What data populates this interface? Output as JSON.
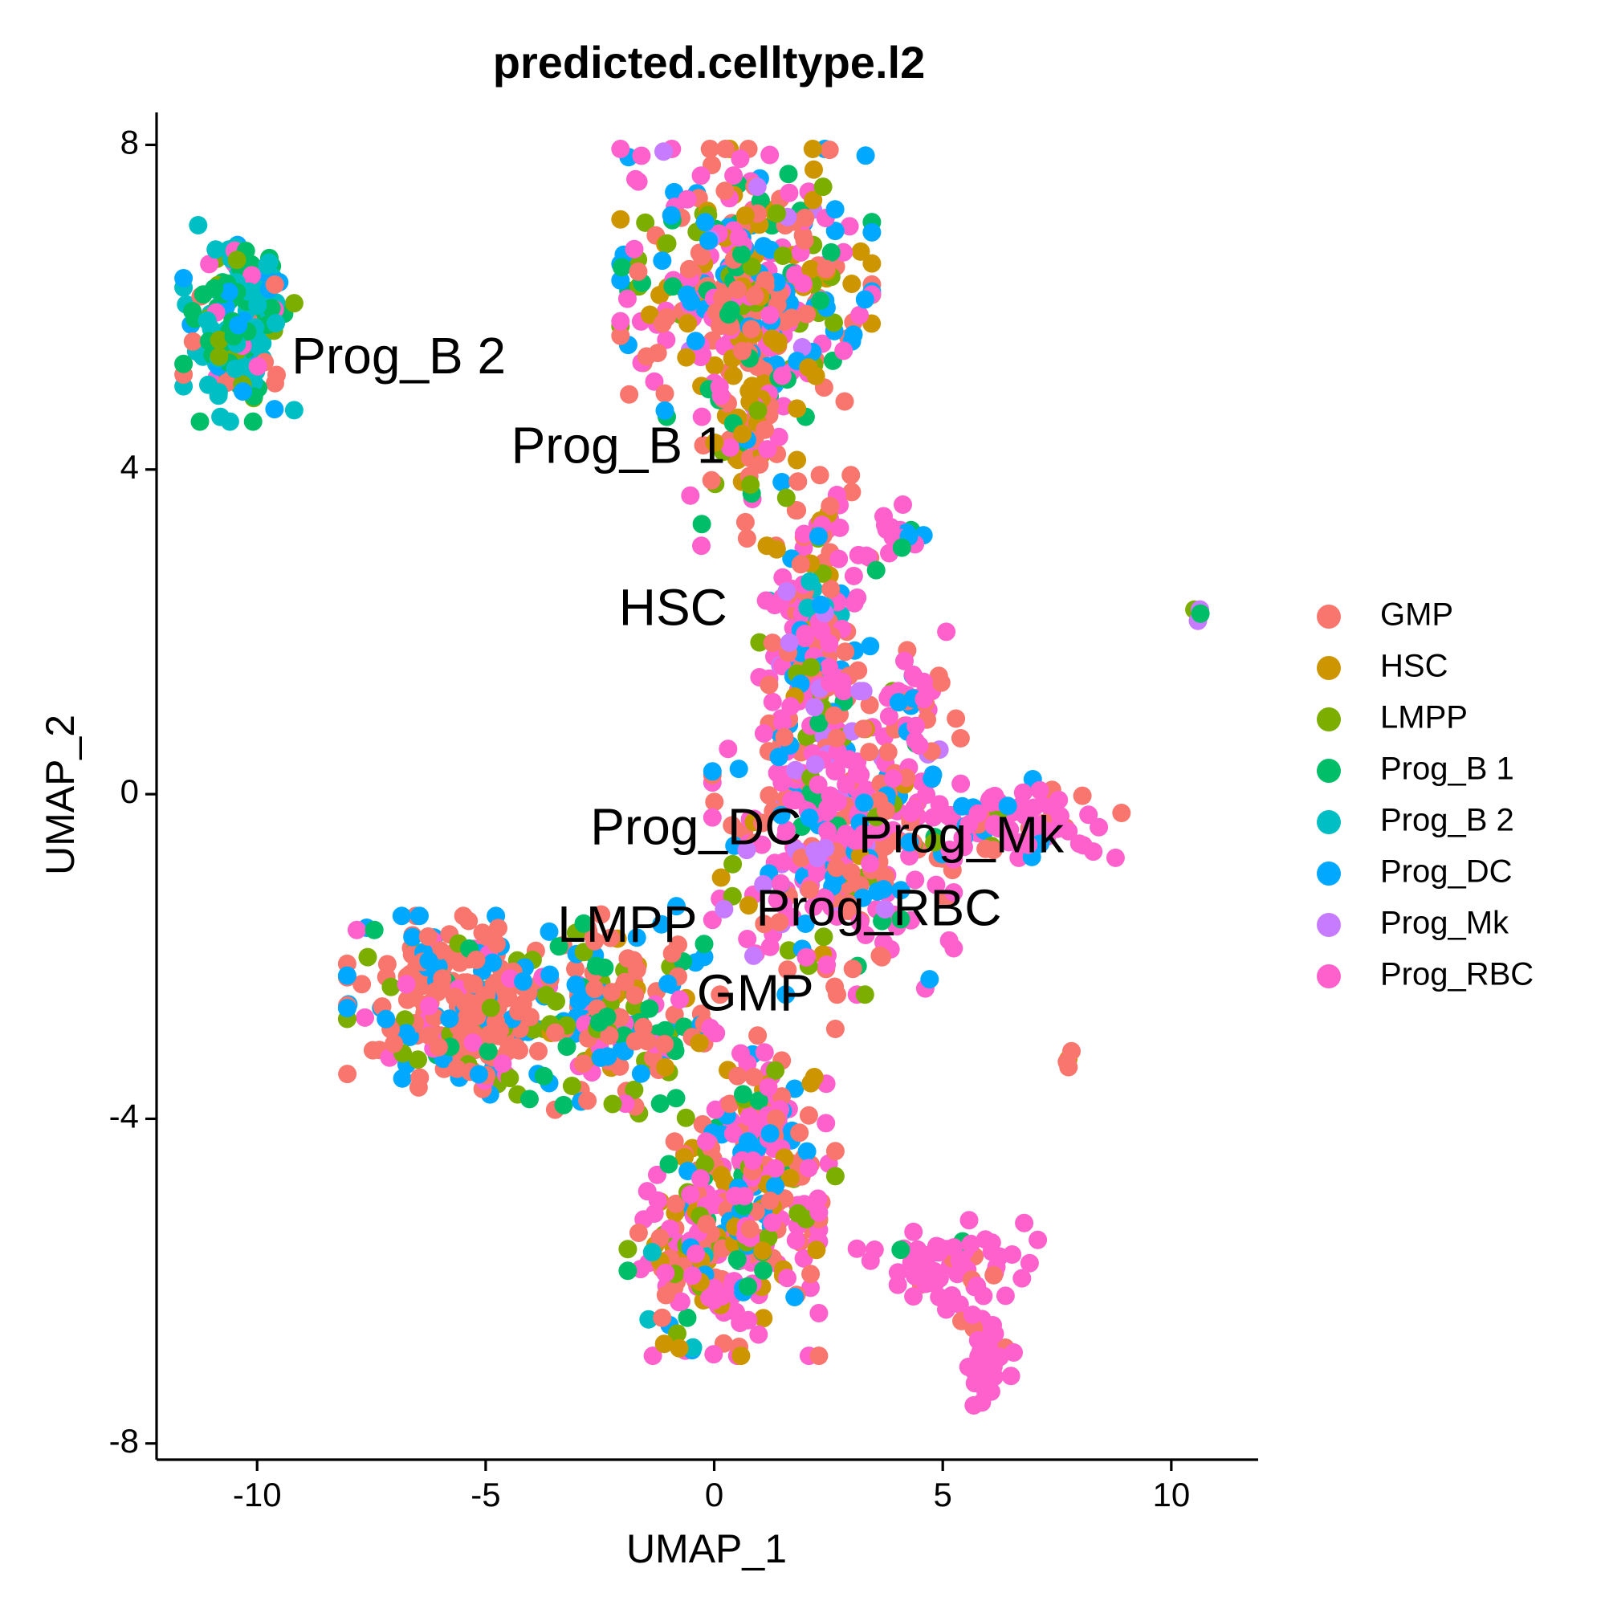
{
  "chart_data": {
    "type": "scatter",
    "title": "predicted.celltype.l2",
    "xlabel": "UMAP_1",
    "ylabel": "UMAP_2",
    "xlim": [
      -12.2,
      11.9
    ],
    "ylim": [
      -8.2,
      8.4
    ],
    "x_ticks": [
      -10,
      -5,
      0,
      5,
      10
    ],
    "x_tick_labels": [
      "-10",
      "-5",
      "0",
      "5",
      "10"
    ],
    "y_ticks": [
      -8,
      -4,
      0,
      4,
      8
    ],
    "y_tick_labels": [
      "-8",
      "-4",
      "0",
      "4",
      "8"
    ],
    "grid": false,
    "legend_position": "right",
    "categories": [
      "GMP",
      "HSC",
      "LMPP",
      "Prog_B 1",
      "Prog_B 2",
      "Prog_DC",
      "Prog_Mk",
      "Prog_RBC"
    ],
    "colors": {
      "GMP": "#F8766D",
      "HSC": "#CD9600",
      "LMPP": "#7CAE00",
      "Prog_B 1": "#00BE67",
      "Prog_B 2": "#00BFC4",
      "Prog_DC": "#00A9FF",
      "Prog_Mk": "#C77CFF",
      "Prog_RBC": "#FF61CC"
    },
    "cluster_labels": [
      {
        "text": "Prog_B 2",
        "x": -6.9,
        "y": 5.35
      },
      {
        "text": "Prog_B 1",
        "x": -2.1,
        "y": 4.25
      },
      {
        "text": "HSC",
        "x": -0.9,
        "y": 2.25
      },
      {
        "text": "Prog_DC",
        "x": -0.4,
        "y": -0.45
      },
      {
        "text": "Prog_Mk",
        "x": 5.4,
        "y": -0.55
      },
      {
        "text": "Prog_RBC",
        "x": 3.6,
        "y": -1.45
      },
      {
        "text": "LMPP",
        "x": -1.9,
        "y": -1.65
      },
      {
        "text": "GMP",
        "x": 0.9,
        "y": -2.5
      }
    ],
    "regions": [
      {
        "x": -10.4,
        "y": 5.8,
        "sx": 0.55,
        "sy": 0.55,
        "n": 170,
        "mix": {
          "Prog_B 2": 0.4,
          "Prog_B 1": 0.25,
          "LMPP": 0.1,
          "Prog_RBC": 0.1,
          "GMP": 0.08,
          "Prog_DC": 0.07
        }
      },
      {
        "x": 0.7,
        "y": 6.3,
        "sx": 1.25,
        "sy": 0.75,
        "n": 380,
        "mix": {
          "GMP": 0.25,
          "Prog_RBC": 0.25,
          "Prog_DC": 0.18,
          "HSC": 0.12,
          "LMPP": 0.08,
          "Prog_B 1": 0.08,
          "Prog_Mk": 0.04
        }
      },
      {
        "x": 0.6,
        "y": 4.6,
        "sx": 0.55,
        "sy": 0.7,
        "n": 80,
        "mix": {
          "GMP": 0.3,
          "Prog_RBC": 0.25,
          "HSC": 0.2,
          "LMPP": 0.1,
          "Prog_B 1": 0.1,
          "Prog_DC": 0.05
        }
      },
      {
        "x": 2.2,
        "y": 2.5,
        "sx": 0.55,
        "sy": 0.65,
        "n": 110,
        "mix": {
          "Prog_RBC": 0.45,
          "GMP": 0.25,
          "Prog_DC": 0.12,
          "HSC": 0.08,
          "Prog_B 2": 0.05,
          "LMPP": 0.05
        }
      },
      {
        "x": 2.3,
        "y": 1.2,
        "sx": 0.5,
        "sy": 0.6,
        "n": 90,
        "mix": {
          "Prog_RBC": 0.4,
          "GMP": 0.3,
          "Prog_DC": 0.15,
          "LMPP": 0.05,
          "Prog_Mk": 0.05,
          "Prog_B 1": 0.05
        }
      },
      {
        "x": 2.6,
        "y": -0.6,
        "sx": 1.2,
        "sy": 0.85,
        "n": 320,
        "mix": {
          "Prog_RBC": 0.45,
          "GMP": 0.2,
          "Prog_DC": 0.12,
          "LMPP": 0.08,
          "Prog_Mk": 0.08,
          "HSC": 0.04,
          "Prog_B 1": 0.03
        }
      },
      {
        "x": 6.6,
        "y": -0.3,
        "sx": 1.05,
        "sy": 0.22,
        "n": 80,
        "mix": {
          "Prog_RBC": 0.7,
          "GMP": 0.15,
          "Prog_DC": 0.1,
          "LMPP": 0.05
        }
      },
      {
        "x": 4.4,
        "y": 0.9,
        "sx": 0.45,
        "sy": 0.5,
        "n": 40,
        "mix": {
          "Prog_RBC": 0.6,
          "GMP": 0.2,
          "Prog_DC": 0.2
        }
      },
      {
        "x": 4.1,
        "y": 3.2,
        "sx": 0.35,
        "sy": 0.2,
        "n": 20,
        "mix": {
          "Prog_RBC": 0.6,
          "Prog_DC": 0.2,
          "Prog_B 1": 0.2
        }
      },
      {
        "x": -5.5,
        "y": -2.6,
        "sx": 1.15,
        "sy": 0.5,
        "n": 260,
        "mix": {
          "GMP": 0.55,
          "Prog_DC": 0.2,
          "Prog_RBC": 0.12,
          "LMPP": 0.08,
          "Prog_B 1": 0.05
        }
      },
      {
        "x": -2.2,
        "y": -2.7,
        "sx": 0.9,
        "sy": 0.6,
        "n": 160,
        "mix": {
          "GMP": 0.35,
          "Prog_DC": 0.2,
          "LMPP": 0.15,
          "Prog_B 1": 0.12,
          "Prog_RBC": 0.12,
          "HSC": 0.06
        }
      },
      {
        "x": 1.0,
        "y": -4.2,
        "sx": 0.75,
        "sy": 0.6,
        "n": 150,
        "mix": {
          "Prog_RBC": 0.4,
          "GMP": 0.3,
          "Prog_DC": 0.12,
          "HSC": 0.08,
          "LMPP": 0.05,
          "Prog_B 1": 0.05
        }
      },
      {
        "x": 0.2,
        "y": -5.6,
        "sx": 0.95,
        "sy": 0.6,
        "n": 230,
        "mix": {
          "Prog_RBC": 0.45,
          "GMP": 0.2,
          "HSC": 0.12,
          "Prog_DC": 0.1,
          "LMPP": 0.06,
          "Prog_B 1": 0.05,
          "Prog_B 2": 0.02
        }
      },
      {
        "x": 5.1,
        "y": -5.8,
        "sx": 0.9,
        "sy": 0.25,
        "n": 60,
        "mix": {
          "Prog_RBC": 0.85,
          "GMP": 0.1,
          "Prog_B 1": 0.05
        }
      },
      {
        "x": 6.0,
        "y": -6.9,
        "sx": 0.3,
        "sy": 0.45,
        "n": 35,
        "mix": {
          "Prog_RBC": 0.9,
          "GMP": 0.1
        }
      },
      {
        "x": 10.6,
        "y": 2.2,
        "sx": 0.06,
        "sy": 0.08,
        "n": 5,
        "mix": {
          "LMPP": 0.3,
          "Prog_Mk": 0.3,
          "GMP": 0.2,
          "Prog_B 1": 0.2
        }
      },
      {
        "x": 7.7,
        "y": -3.3,
        "sx": 0.06,
        "sy": 0.06,
        "n": 4,
        "mix": {
          "HSC": 0.5,
          "GMP": 0.5
        }
      }
    ]
  }
}
